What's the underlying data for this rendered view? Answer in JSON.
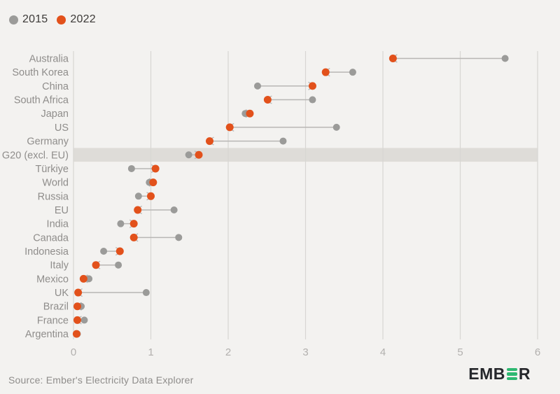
{
  "legend": {
    "items": [
      {
        "label": "2015",
        "color": "#9b9b99"
      },
      {
        "label": "2022",
        "color": "#e2511b"
      }
    ]
  },
  "source": {
    "text": "Source: Ember's Electricity Data Explorer"
  },
  "logo": {
    "prefix": "EMB",
    "suffix": "R",
    "bar_color": "#2eb871",
    "text_color": "#25272b"
  },
  "colors": {
    "background": "#f3f2f0",
    "gridline": "#d8d6d3",
    "highlight_band": "#dedcd8",
    "connector": "#b8b6b4",
    "dot_2015": "#9b9b99",
    "dot_2022": "#e2511b",
    "row_label": "#8f8d8b",
    "tick_label": "#b2b0ae"
  },
  "chart_data": {
    "type": "scatter",
    "subtype": "dumbbell-dot-plot",
    "title": "",
    "categories": [
      "Australia",
      "South Korea",
      "China",
      "South Africa",
      "Japan",
      "US",
      "Germany",
      "G20 (excl. EU)",
      "Türkiye",
      "World",
      "Russia",
      "EU",
      "India",
      "Canada",
      "Indonesia",
      "Italy",
      "Mexico",
      "UK",
      "Brazil",
      "France",
      "Argentina"
    ],
    "series": [
      {
        "name": "2015",
        "color": "#9b9b99",
        "values": [
          5.58,
          3.61,
          2.38,
          3.09,
          2.22,
          3.4,
          2.71,
          1.49,
          0.75,
          0.98,
          0.84,
          1.3,
          0.61,
          1.36,
          0.39,
          0.58,
          0.2,
          0.94,
          0.1,
          0.14,
          0.05
        ]
      },
      {
        "name": "2022",
        "color": "#e2511b",
        "values": [
          4.13,
          3.26,
          3.09,
          2.51,
          2.28,
          2.02,
          1.76,
          1.62,
          1.06,
          1.03,
          1.0,
          0.83,
          0.78,
          0.78,
          0.6,
          0.29,
          0.13,
          0.06,
          0.05,
          0.05,
          0.04
        ]
      }
    ],
    "arrow_from_series": "2015",
    "arrow_to_series": "2022",
    "highlighted_category": "G20 (excl. EU)",
    "xlabel": "",
    "ylabel": "",
    "xlim": [
      0,
      6
    ],
    "xticks": [
      0,
      1,
      2,
      3,
      4,
      5,
      6
    ],
    "grid": true,
    "legend_position": "top-left"
  }
}
